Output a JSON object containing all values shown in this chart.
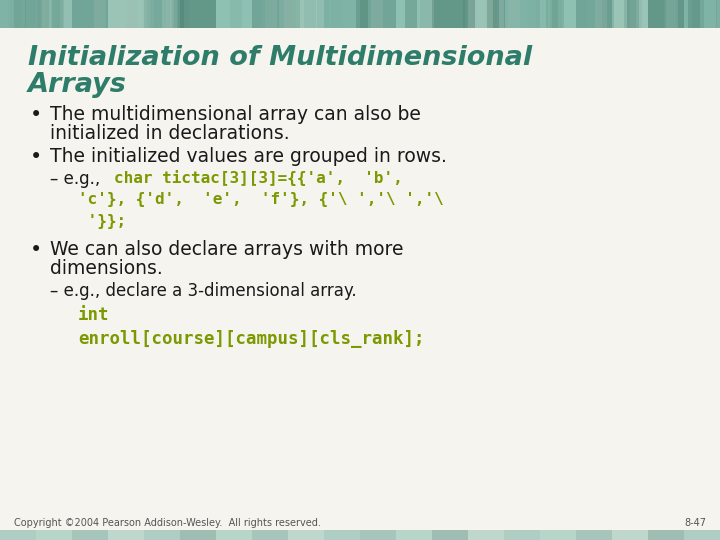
{
  "title_line1": "Initialization of Multidimensional",
  "title_line2": "Arrays",
  "title_color": "#2E7D6B",
  "background_color": "#F5F4EE",
  "bullet_color": "#1a1a1a",
  "code_color": "#7B9900",
  "bullet1_line1": "The multidimensional array can also be",
  "bullet1_line2": "initialized in declarations.",
  "bullet2": "The initialized values are grouped in rows.",
  "sub1_prefix": "– e.g., ",
  "sub1_code_line1": "char tictac[3][3]={{'a',  'b',",
  "sub1_code_line2": "'c'}, {'d',  'e',  'f'}, {'\\ ','\\ ','\\",
  "sub1_code_line3": "'}};",
  "bullet3_line1": "We can also declare arrays with more",
  "bullet3_line2": "dimensions.",
  "sub2_prefix": "– e.g., declare a 3-dimensional array.",
  "sub2_code1": "int",
  "sub2_code2": "enroll[course][campus][cls_rank];",
  "footer_left": "Copyright ©2004 Pearson Addison-Wesley.  All rights reserved.",
  "footer_right": "8-47",
  "footer_color": "#555555",
  "top_band_colors": [
    "#6BA898",
    "#7DB8A8",
    "#5A9888",
    "#8ABCAC",
    "#6BA898",
    "#4A8878",
    "#7DB8A8",
    "#5A9888",
    "#8ABCAC",
    "#6BA898",
    "#5A9888",
    "#7DB8A8",
    "#4A8878",
    "#8ABCAC",
    "#6BA898",
    "#7DB8A8",
    "#5A9888",
    "#8ABCAC",
    "#4A8878",
    "#6BA898"
  ]
}
